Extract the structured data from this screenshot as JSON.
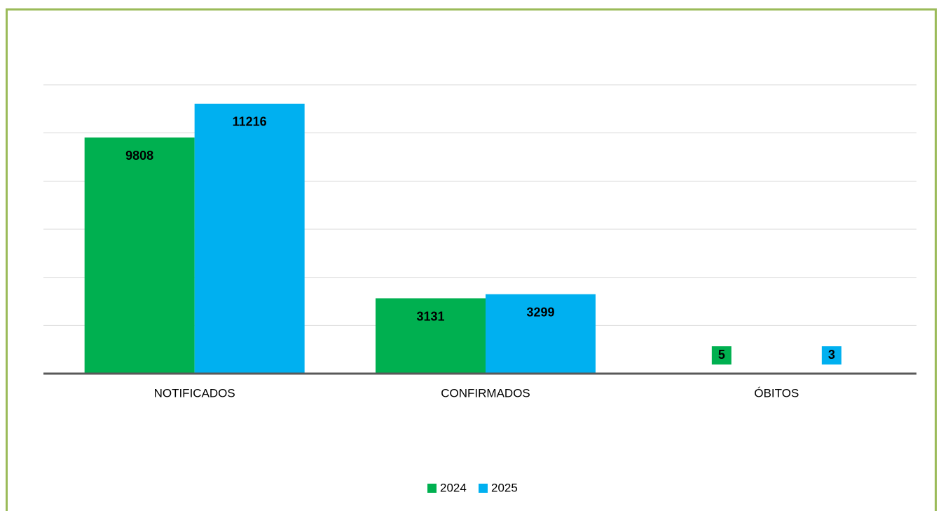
{
  "chart_data": {
    "type": "bar",
    "categories": [
      "NOTIFICADOS",
      "CONFIRMADOS",
      "ÓBITOS"
    ],
    "series": [
      {
        "name": "2024",
        "color": "#00b050",
        "values": [
          9808,
          3131,
          5
        ]
      },
      {
        "name": "2025",
        "color": "#00b0f0",
        "values": [
          11216,
          3299,
          3
        ]
      }
    ],
    "ylim": [
      0,
      12000
    ],
    "yticks": [
      0,
      2000,
      4000,
      6000,
      8000,
      10000,
      12000
    ],
    "grid": true,
    "legend": "bottom"
  }
}
